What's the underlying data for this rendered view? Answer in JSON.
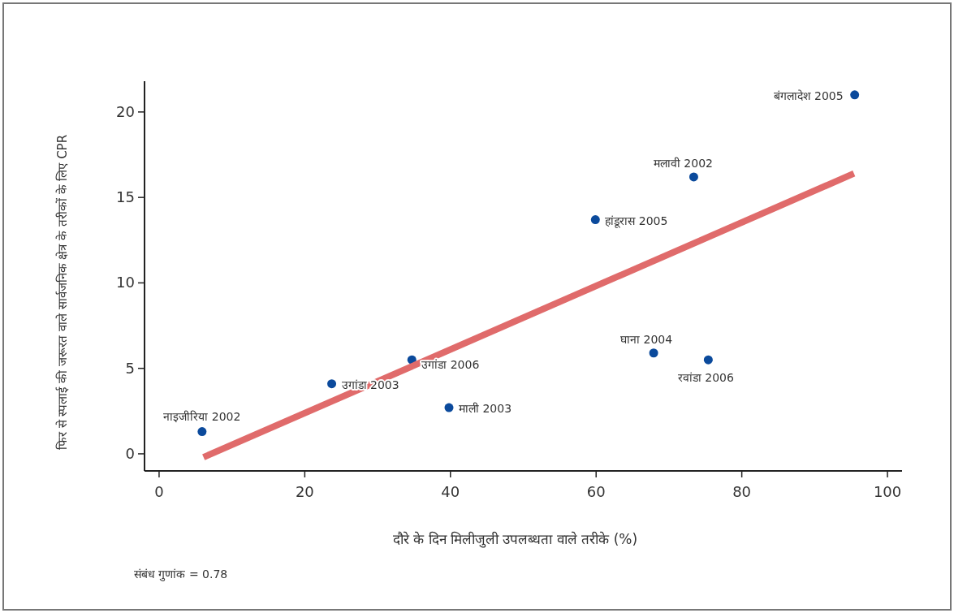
{
  "chart_data": {
    "type": "scatter",
    "xlabel": "दौरे के दिन मिलीजुली उपलब्धता वाले तरीके (%)",
    "ylabel": "फिर से स्पलाई की जरूरत वाले सार्वजनिक क्षेत्र के तरीकों के लिए CPR",
    "annotations": [
      {
        "text": "नाइजीरिया 2002",
        "x": 5.9,
        "y": 1.3
      },
      {
        "text": "उगांडा 2003",
        "x": 23.7,
        "y": 4.1
      },
      {
        "text": "उगांडा 2006",
        "x": 34.7,
        "y": 5.5
      },
      {
        "text": "माली 2003",
        "x": 39.8,
        "y": 2.7
      },
      {
        "text": "हांडूरास 2005",
        "x": 59.9,
        "y": 13.7
      },
      {
        "text": "मलावी 2002",
        "x": 73.4,
        "y": 16.2
      },
      {
        "text": "घाना 2004",
        "x": 67.9,
        "y": 5.9
      },
      {
        "text": "रवांडा 2006",
        "x": 75.4,
        "y": 5.5
      },
      {
        "text": "बंगलादेश 2005",
        "x": 95.5,
        "y": 21.0
      },
      "संबंध गुणांक = 0.78"
    ],
    "series": [
      {
        "color": "#0b4a9c",
        "marker": "circle",
        "x": [
          5.9,
          23.7,
          34.7,
          39.8,
          59.9,
          73.4,
          67.9,
          75.4,
          95.5
        ],
        "values": [
          1.3,
          4.1,
          5.5,
          2.7,
          13.7,
          16.2,
          5.9,
          5.5,
          21.0
        ]
      },
      {
        "type": "line",
        "color": "#e06b6b",
        "x": [
          6.1,
          95.4
        ],
        "values": [
          -0.2,
          16.4
        ]
      }
    ],
    "xlim": [
      -2,
      102
    ],
    "ylim": [
      -1,
      21.8
    ],
    "xticks": [
      0,
      20,
      40,
      60,
      80,
      100
    ],
    "yticks": [
      0,
      5,
      10,
      15,
      20
    ]
  }
}
